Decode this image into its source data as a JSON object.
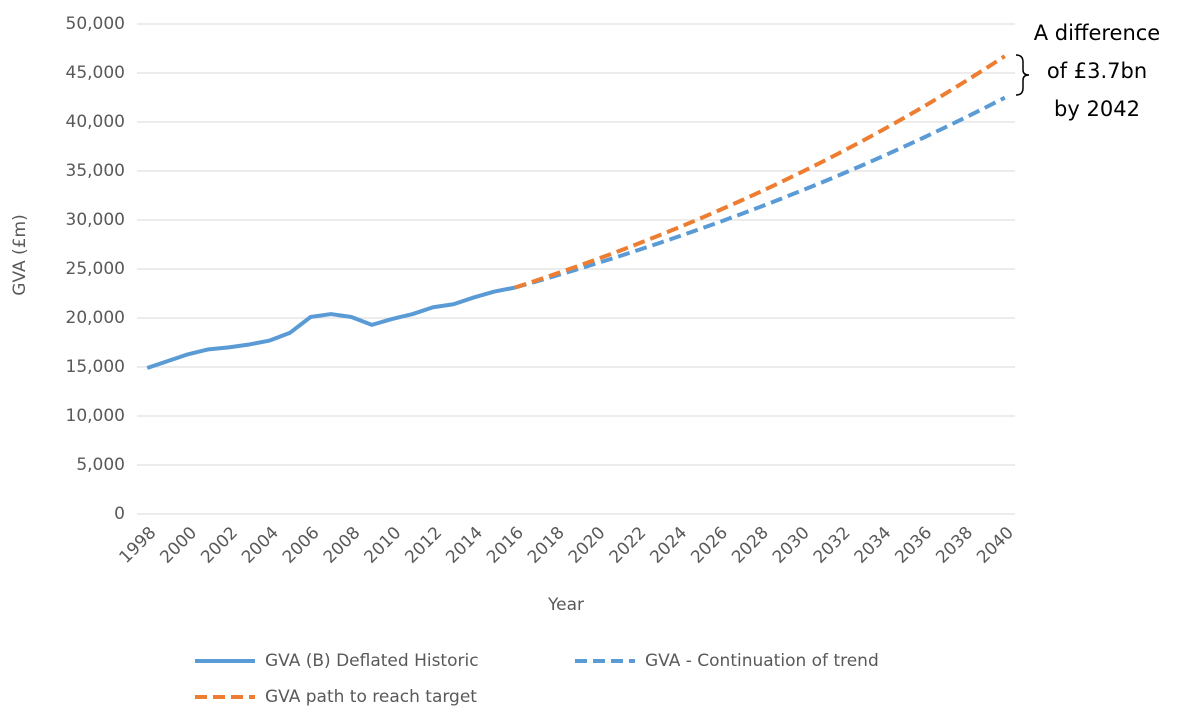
{
  "chart_data": {
    "type": "line",
    "x_label": "Year",
    "y_label": "GVA (£m)",
    "annotation": [
      "A difference",
      "of £3.7bn",
      "by 2042"
    ],
    "x": [
      1998,
      1999,
      2000,
      2001,
      2002,
      2003,
      2004,
      2005,
      2006,
      2007,
      2008,
      2009,
      2010,
      2011,
      2012,
      2013,
      2014,
      2015,
      2016,
      2017,
      2018,
      2019,
      2020,
      2021,
      2022,
      2023,
      2024,
      2025,
      2026,
      2027,
      2028,
      2029,
      2030,
      2031,
      2032,
      2033,
      2034,
      2035,
      2036,
      2037,
      2038,
      2039,
      2040
    ],
    "series": [
      {
        "name": "GVA (B) Deflated Historic",
        "color": "#5b9bd5",
        "style": "solid",
        "values": [
          14900,
          15600,
          16300,
          16800,
          17000,
          17300,
          17700,
          18500,
          20100,
          20400,
          20100,
          19300,
          19900,
          20400,
          21100,
          21400,
          22100,
          22700,
          23100,
          null,
          null,
          null,
          null,
          null,
          null,
          null,
          null,
          null,
          null,
          null,
          null,
          null,
          null,
          null,
          null,
          null,
          null,
          null,
          null,
          null,
          null,
          null,
          null
        ]
      },
      {
        "name": "GVA - Continuation of trend",
        "color": "#5b9bd5",
        "style": "dashed",
        "values": [
          null,
          null,
          null,
          null,
          null,
          null,
          null,
          null,
          null,
          null,
          null,
          null,
          null,
          null,
          null,
          null,
          null,
          null,
          23100,
          23690,
          24300,
          24930,
          25570,
          26220,
          26900,
          27590,
          28300,
          29030,
          29770,
          30540,
          31320,
          32130,
          32960,
          33800,
          34670,
          35560,
          36480,
          37420,
          38380,
          39370,
          40380,
          41420,
          42480
        ]
      },
      {
        "name": "GVA path to reach target",
        "color": "#ed7d31",
        "style": "dashed",
        "values": [
          null,
          null,
          null,
          null,
          null,
          null,
          null,
          null,
          null,
          null,
          null,
          null,
          null,
          null,
          null,
          null,
          null,
          null,
          23100,
          23790,
          24500,
          25230,
          25980,
          26750,
          27550,
          28370,
          29210,
          30080,
          30980,
          31900,
          32850,
          33830,
          34840,
          35870,
          36940,
          38040,
          39170,
          40340,
          41540,
          42780,
          44060,
          45370,
          46720
        ]
      }
    ],
    "xlim": [
      1997.5,
      2040.5
    ],
    "xticks": [
      1998,
      2000,
      2002,
      2004,
      2006,
      2008,
      2010,
      2012,
      2014,
      2016,
      2018,
      2020,
      2022,
      2024,
      2026,
      2028,
      2030,
      2032,
      2034,
      2036,
      2038,
      2040
    ],
    "ylim": [
      0,
      50000
    ],
    "yticks": [
      0,
      {
        "value": 5000,
        "label": "5,000"
      },
      {
        "value": 10000,
        "label": "10,000"
      },
      {
        "value": 15000,
        "label": "15,000"
      },
      {
        "value": 20000,
        "label": "20,000"
      },
      {
        "value": 25000,
        "label": "25,000"
      },
      {
        "value": 30000,
        "label": "30,000"
      },
      {
        "value": 35000,
        "label": "35,000"
      },
      {
        "value": 40000,
        "label": "40,000"
      },
      {
        "value": 45000,
        "label": "45,000"
      },
      {
        "value": 50000,
        "label": "50,000"
      }
    ],
    "grid": true
  }
}
